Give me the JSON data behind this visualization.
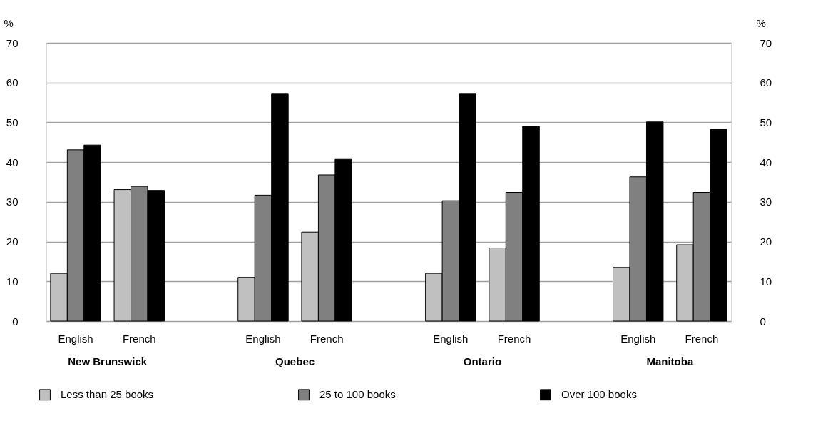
{
  "chart_data": {
    "type": "bar",
    "ylabel": "%",
    "y2label": "%",
    "categories": [
      "English",
      "French",
      "English",
      "French",
      "English",
      "French",
      "English",
      "French"
    ],
    "series": [
      {
        "name": "Less than 25 books",
        "color": "#c0c0c0",
        "values": [
          12.0,
          33.1,
          11.0,
          22.4,
          12.0,
          18.4,
          13.5,
          19.2
        ]
      },
      {
        "name": "25 to 100 books",
        "color": "#808080",
        "values": [
          43.1,
          33.9,
          31.7,
          36.8,
          30.3,
          32.4,
          36.3,
          32.4
        ]
      },
      {
        "name": "Over 100 books",
        "color": "#000000",
        "values": [
          44.3,
          32.9,
          57.1,
          40.7,
          57.1,
          49.0,
          50.1,
          48.2
        ]
      }
    ],
    "annotations": [
      "New Brunswick",
      "Quebec",
      "Ontario",
      "Manitoba"
    ],
    "ylim": [
      0,
      70
    ],
    "yticks": [
      0,
      10,
      20,
      30,
      40,
      50,
      60,
      70
    ],
    "y2lim": [
      0,
      70
    ],
    "y2ticks": [
      0,
      10,
      20,
      30,
      40,
      50,
      60,
      70
    ],
    "grid": "y",
    "legend": "bottom"
  }
}
